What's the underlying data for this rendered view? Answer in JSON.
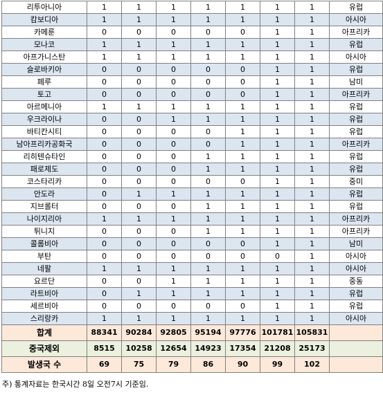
{
  "rows": [
    {
      "country": "리투아니아",
      "values": [
        "1",
        "1",
        "1",
        "1",
        "1",
        "1",
        "1"
      ],
      "region": "유럽"
    },
    {
      "country": "캄보디아",
      "values": [
        "1",
        "1",
        "1",
        "1",
        "1",
        "1",
        "1"
      ],
      "region": "아시아"
    },
    {
      "country": "카메룬",
      "values": [
        "0",
        "0",
        "0",
        "0",
        "0",
        "1",
        "1"
      ],
      "region": "아프리카"
    },
    {
      "country": "모나코",
      "values": [
        "1",
        "1",
        "1",
        "1",
        "1",
        "1",
        "1"
      ],
      "region": "유럽"
    },
    {
      "country": "아프가니스탄",
      "values": [
        "1",
        "1",
        "1",
        "1",
        "1",
        "1",
        "1"
      ],
      "region": "아시아"
    },
    {
      "country": "슬로바키아",
      "values": [
        "0",
        "0",
        "0",
        "0",
        "0",
        "1",
        "1"
      ],
      "region": "유럽"
    },
    {
      "country": "페루",
      "values": [
        "0",
        "0",
        "0",
        "0",
        "0",
        "1",
        "1"
      ],
      "region": "남미"
    },
    {
      "country": "토고",
      "values": [
        "0",
        "0",
        "0",
        "0",
        "0",
        "1",
        "1"
      ],
      "region": "아프리카"
    },
    {
      "country": "아르메니아",
      "values": [
        "1",
        "1",
        "1",
        "1",
        "1",
        "1",
        "1"
      ],
      "region": "유럽"
    },
    {
      "country": "우크라이나",
      "values": [
        "0",
        "0",
        "1",
        "1",
        "1",
        "1",
        "1"
      ],
      "region": "유럽"
    },
    {
      "country": "바티칸시티",
      "values": [
        "0",
        "0",
        "0",
        "0",
        "1",
        "1",
        "1"
      ],
      "region": "유럽"
    },
    {
      "country": "남아프리카공화국",
      "values": [
        "0",
        "0",
        "0",
        "0",
        "1",
        "1",
        "1"
      ],
      "region": "아프리카"
    },
    {
      "country": "리히텐슈타인",
      "values": [
        "0",
        "0",
        "0",
        "1",
        "1",
        "1",
        "1"
      ],
      "region": "유럽"
    },
    {
      "country": "패로제도",
      "values": [
        "0",
        "0",
        "0",
        "1",
        "1",
        "1",
        "1"
      ],
      "region": "유럽"
    },
    {
      "country": "코스타리카",
      "values": [
        "0",
        "0",
        "0",
        "0",
        "0",
        "1",
        "1"
      ],
      "region": "중미"
    },
    {
      "country": "안도라",
      "values": [
        "0",
        "1",
        "1",
        "1",
        "1",
        "1",
        "1"
      ],
      "region": "유럽"
    },
    {
      "country": "지브롤터",
      "values": [
        "0",
        "0",
        "0",
        "1",
        "1",
        "1",
        "1"
      ],
      "region": "유럽"
    },
    {
      "country": "나이지리아",
      "values": [
        "1",
        "1",
        "1",
        "1",
        "1",
        "1",
        "1"
      ],
      "region": "아프리카"
    },
    {
      "country": "튀니지",
      "values": [
        "0",
        "0",
        "0",
        "1",
        "1",
        "1",
        "1"
      ],
      "region": "아프리카"
    },
    {
      "country": "콜롬비아",
      "values": [
        "0",
        "0",
        "0",
        "0",
        "0",
        "1",
        "1"
      ],
      "region": "남미"
    },
    {
      "country": "부탄",
      "values": [
        "0",
        "0",
        "0",
        "0",
        "0",
        "0",
        "1"
      ],
      "region": "아시아"
    },
    {
      "country": "네팔",
      "values": [
        "1",
        "1",
        "1",
        "1",
        "1",
        "1",
        "1"
      ],
      "region": "아시아"
    },
    {
      "country": "요르단",
      "values": [
        "0",
        "0",
        "1",
        "1",
        "1",
        "1",
        "1"
      ],
      "region": "중동"
    },
    {
      "country": "라트비아",
      "values": [
        "0",
        "1",
        "1",
        "1",
        "1",
        "1",
        "1"
      ],
      "region": "유럽"
    },
    {
      "country": "세르비아",
      "values": [
        "0",
        "0",
        "0",
        "0",
        "0",
        "1",
        "1"
      ],
      "region": "유럽"
    },
    {
      "country": "스리랑카",
      "values": [
        "1",
        "1",
        "1",
        "1",
        "1",
        "1",
        "1"
      ],
      "region": "아시아"
    }
  ],
  "summary": [
    {
      "label": "합계",
      "values": [
        "88341",
        "90284",
        "92805",
        "95194",
        "97776",
        "101781",
        "105831"
      ],
      "kind": "total"
    },
    {
      "label": "중국제외",
      "values": [
        "8515",
        "10258",
        "12654",
        "14923",
        "17354",
        "21208",
        "25173"
      ],
      "kind": "exchina"
    },
    {
      "label": "발생국 수",
      "values": [
        "69",
        "75",
        "79",
        "86",
        "90",
        "99",
        "102"
      ],
      "kind": "count"
    }
  ],
  "note": "주) 통계자료는 한국시간 8일 오전7시 기준임."
}
